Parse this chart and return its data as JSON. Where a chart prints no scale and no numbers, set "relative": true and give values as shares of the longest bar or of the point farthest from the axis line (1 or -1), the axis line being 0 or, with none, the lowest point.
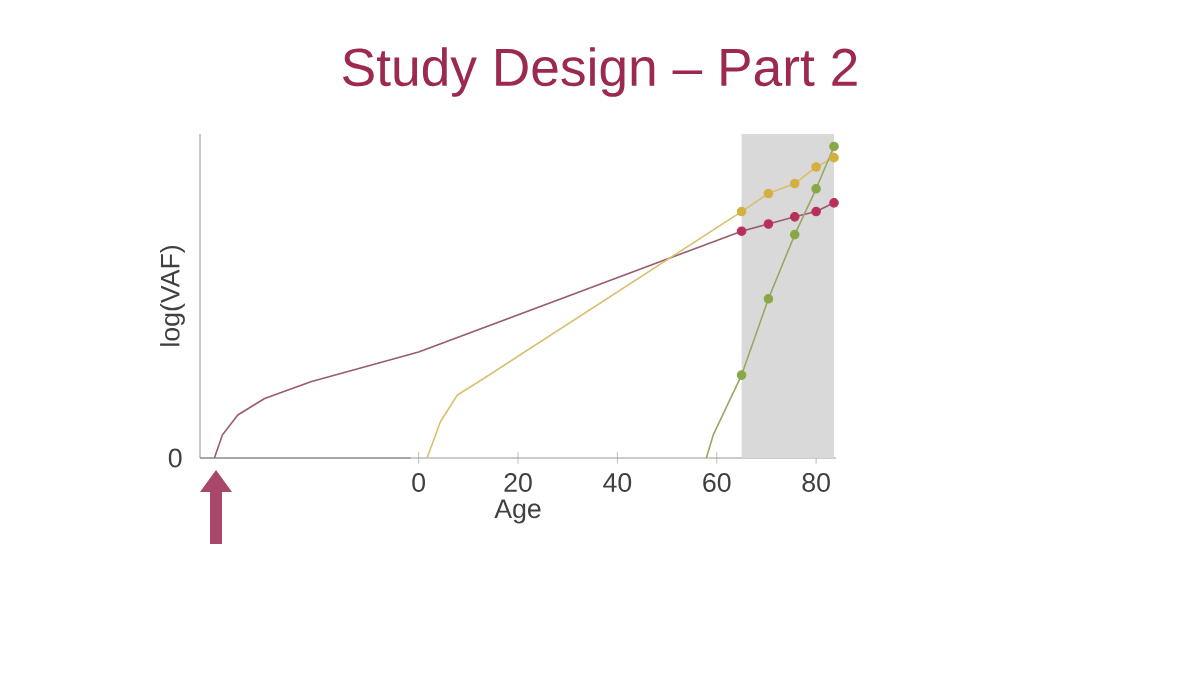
{
  "chart_data": {
    "type": "line",
    "title": "Study Design – Part 2",
    "xlabel": "Age",
    "ylabel": "log(VAF)",
    "relative": true,
    "xlim": [
      -44,
      84
    ],
    "xticks": [
      0,
      20,
      40,
      60,
      80
    ],
    "annotations": [
      "0"
    ],
    "bands": [
      {
        "axis": "x",
        "from": 65,
        "to": 83.6,
        "color": "#d9d9d9"
      }
    ],
    "series": [
      {
        "color": "#9a5a70",
        "marker": "none",
        "x": [
          -41.1,
          -39.5,
          -36.4,
          -31,
          -21.7,
          0,
          65.0,
          70.4,
          75.7,
          80.0,
          83.6
        ],
        "values": [
          0,
          0.074,
          0.138,
          0.191,
          0.245,
          0.34,
          0.728,
          0.751,
          0.774,
          0.791,
          0.819
        ]
      },
      {
        "color": "#d8c070",
        "marker": "none",
        "x": [
          1.7,
          4.4,
          7.8,
          13.1,
          65.0,
          70.4,
          75.7,
          80.0,
          83.6
        ],
        "values": [
          0,
          0.117,
          0.202,
          0.255,
          0.791,
          0.849,
          0.881,
          0.934,
          0.964
        ]
      },
      {
        "color": "#98a860",
        "marker": "none",
        "x": [
          57.9,
          59.3,
          65.0,
          70.4,
          75.7,
          80.0,
          83.6
        ],
        "values": [
          0,
          0.074,
          0.266,
          0.511,
          0.717,
          0.864,
          1
        ]
      },
      {
        "type": "scatter",
        "color": "#b8305a",
        "marker": "circle",
        "x": [
          65.0,
          70.4,
          75.7,
          80.0,
          83.6
        ],
        "values": [
          0.728,
          0.751,
          0.774,
          0.791,
          0.819
        ]
      },
      {
        "type": "scatter",
        "color": "#d4b040",
        "marker": "circle",
        "x": [
          65.0,
          70.4,
          75.7,
          80.0,
          83.6
        ],
        "values": [
          0.791,
          0.849,
          0.881,
          0.934,
          0.964
        ]
      },
      {
        "type": "scatter",
        "color": "#88a848",
        "marker": "circle",
        "x": [
          65.0,
          70.4,
          75.7,
          80.0,
          83.6
        ],
        "values": [
          0.266,
          0.511,
          0.717,
          0.864,
          1
        ]
      }
    ],
    "grid": false
  }
}
